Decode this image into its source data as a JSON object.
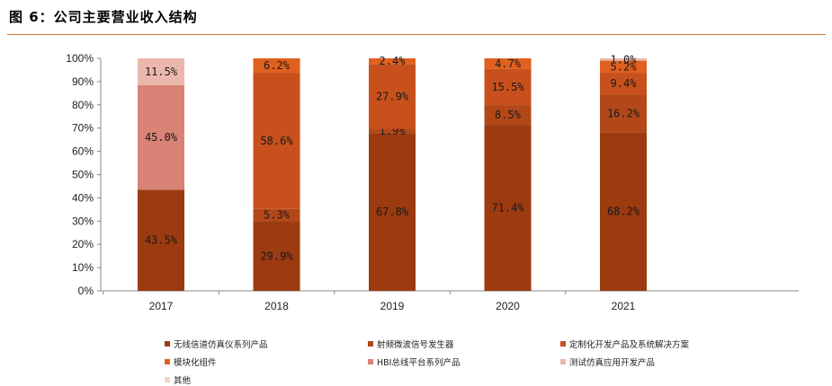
{
  "figure_title": "图 6：公司主要营业收入结构",
  "chart_data": {
    "type": "bar",
    "stacked": true,
    "categories": [
      "2017",
      "2018",
      "2019",
      "2020",
      "2021"
    ],
    "ylim": [
      0,
      100
    ],
    "yticks": [
      "0%",
      "10%",
      "20%",
      "30%",
      "40%",
      "50%",
      "60%",
      "70%",
      "80%",
      "90%",
      "100%"
    ],
    "grid": false,
    "legend_position": "bottom",
    "series": [
      {
        "name": "无线信道仿真仪系列产品",
        "color": "#9c3a10",
        "values": [
          43.5,
          29.9,
          67.8,
          71.4,
          68.2
        ]
      },
      {
        "name": "射频微波信号发生器",
        "color": "#b24818",
        "values": [
          0,
          5.3,
          1.9,
          8.5,
          16.2
        ]
      },
      {
        "name": "定制化开发产品及系统解决方案",
        "color": "#c8501c",
        "values": [
          0,
          58.6,
          27.9,
          15.5,
          9.4
        ]
      },
      {
        "name": "模块化组件",
        "color": "#e0601e",
        "values": [
          0,
          6.2,
          2.4,
          4.7,
          5.2
        ]
      },
      {
        "name": "HBI总线平台系列产品",
        "color": "#d98276",
        "values": [
          45.0,
          0,
          0,
          0,
          0
        ]
      },
      {
        "name": "测试仿真应用开发产品",
        "color": "#ebb7ad",
        "values": [
          11.5,
          0,
          0,
          0,
          1.0
        ]
      },
      {
        "name": "其他",
        "color": "#f3d3cc",
        "values": [
          0,
          0,
          0,
          0,
          0
        ]
      }
    ],
    "data_labels": [
      [
        "43.5%",
        "",
        "",
        "",
        "45.0%",
        "11.5%",
        ""
      ],
      [
        "29.9%",
        "5.3%",
        "58.6%",
        "6.2%",
        "",
        "",
        ""
      ],
      [
        "67.8%",
        "1.9%",
        "27.9%",
        "2.4%",
        "",
        "",
        ""
      ],
      [
        "71.4%",
        "8.5%",
        "15.5%",
        "4.7%",
        "",
        "",
        ""
      ],
      [
        "68.2%",
        "16.2%",
        "9.4%",
        "5.2%",
        "",
        "1.0%",
        ""
      ]
    ]
  }
}
